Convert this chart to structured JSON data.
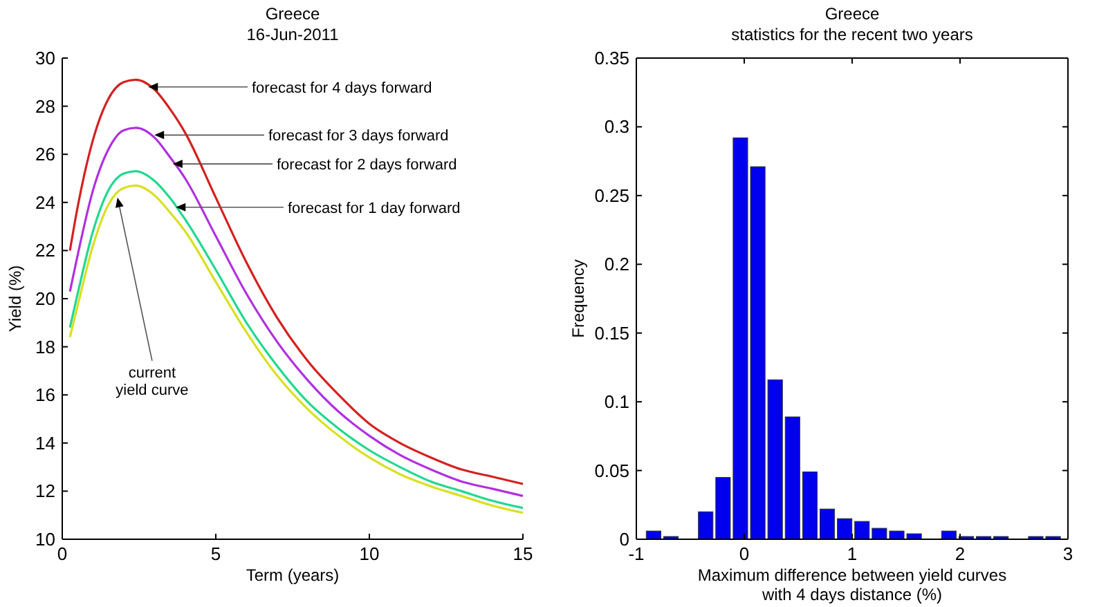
{
  "chart_data": [
    {
      "type": "line",
      "title": "Greece",
      "subtitle": "16-Jun-2011",
      "xlabel": "Term (years)",
      "ylabel": "Yield (%)",
      "xlim": [
        0,
        15
      ],
      "xticks": [
        0,
        5,
        10,
        15
      ],
      "ylim": [
        10,
        30
      ],
      "yticks": [
        10,
        12,
        14,
        16,
        18,
        20,
        22,
        24,
        26,
        28,
        30
      ],
      "grid": false,
      "x": [
        0.25,
        0.5,
        1,
        1.5,
        2,
        2.4,
        3,
        3.5,
        4,
        5,
        6,
        7,
        8,
        9,
        10,
        11,
        12,
        13,
        14,
        15
      ],
      "series": [
        {
          "color": "#d42020",
          "values": [
            22.0,
            23.8,
            26.6,
            28.3,
            29.0,
            29.1,
            28.7,
            27.9,
            26.9,
            24.2,
            21.5,
            19.2,
            17.4,
            16.0,
            14.8,
            14.0,
            13.4,
            12.9,
            12.6,
            12.3
          ]
        },
        {
          "color": "#b030e0",
          "values": [
            20.3,
            21.8,
            24.5,
            26.2,
            27.0,
            27.1,
            26.7,
            25.9,
            25.0,
            22.6,
            20.2,
            18.2,
            16.6,
            15.3,
            14.3,
            13.5,
            12.9,
            12.4,
            12.1,
            11.8
          ]
        },
        {
          "color": "#20d890",
          "values": [
            18.8,
            20.2,
            22.8,
            24.5,
            25.2,
            25.3,
            24.9,
            24.2,
            23.3,
            21.2,
            19.0,
            17.2,
            15.7,
            14.6,
            13.7,
            13.0,
            12.4,
            12.0,
            11.6,
            11.3
          ]
        },
        {
          "color": "#d8e020",
          "values": [
            18.4,
            19.7,
            22.2,
            23.9,
            24.6,
            24.7,
            24.3,
            23.6,
            22.8,
            20.7,
            18.6,
            16.8,
            15.4,
            14.3,
            13.4,
            12.7,
            12.2,
            11.8,
            11.4,
            11.1
          ]
        }
      ],
      "annotations": [
        {
          "text": "forecast for 4 days forward",
          "x": 2.8,
          "y": 28.8
        },
        {
          "text": "forecast for 3 days forward",
          "x": 3.0,
          "y": 26.8
        },
        {
          "text": "forecast for 2 days forward",
          "x": 3.6,
          "y": 25.6
        },
        {
          "text": "forecast for 1 day forward",
          "x": 3.7,
          "y": 23.8
        },
        {
          "text": "current\nyield curve",
          "x": 1.8,
          "y": 24.2
        }
      ]
    },
    {
      "type": "histogram",
      "title": "Greece",
      "subtitle": "statistics for the recent two years",
      "xlabel": "Maximum difference between yield curves\nwith 4 days distance (%)",
      "ylabel": "Frequency",
      "xlim": [
        -1,
        3
      ],
      "xticks": [
        -1,
        0,
        1,
        2,
        3
      ],
      "ylim": [
        0,
        0.35
      ],
      "yticks": [
        0,
        0.05,
        0.1,
        0.15,
        0.2,
        0.25,
        0.3,
        0.35
      ],
      "color": "#0000ee",
      "grid": false,
      "bins": [
        -0.921,
        -0.76,
        -0.599,
        -0.438,
        -0.277,
        -0.116,
        0.045,
        0.206,
        0.367,
        0.528,
        0.689,
        0.85,
        1.011,
        1.172,
        1.333,
        1.494,
        1.655,
        1.816,
        1.977,
        2.138,
        2.299,
        2.46,
        2.621,
        2.782,
        2.943
      ],
      "values": [
        0.006,
        0.002,
        0,
        0.02,
        0.045,
        0.292,
        0.271,
        0.116,
        0.089,
        0.049,
        0.022,
        0.015,
        0.013,
        0.008,
        0.006,
        0.004,
        0,
        0.006,
        0.002,
        0.002,
        0.002,
        0,
        0.002,
        0.002
      ]
    }
  ]
}
